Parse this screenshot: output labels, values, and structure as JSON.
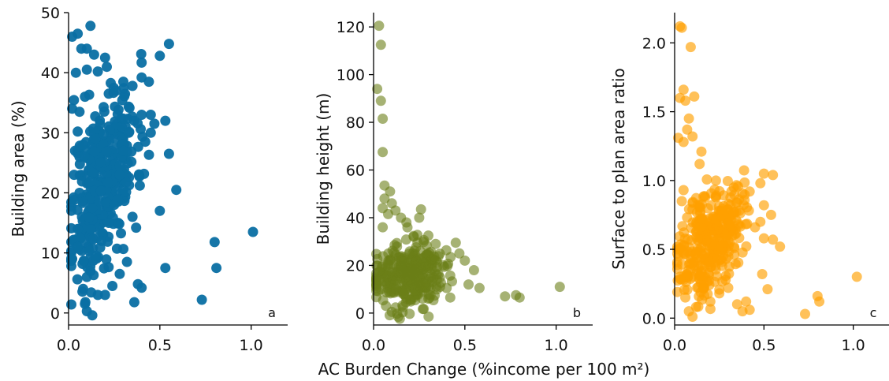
{
  "shared_xlabel": "AC Burden Change (%income per 100 m²)",
  "chart_data": [
    {
      "type": "scatter",
      "panel_label": "a",
      "xlabel": "",
      "ylabel": "Building area (%)",
      "xlim": [
        0.0,
        1.2
      ],
      "ylim": [
        -2,
        50
      ],
      "xticks": [
        "0.0",
        "0.5",
        "1.0"
      ],
      "xtick_values": [
        0.0,
        0.5,
        1.0
      ],
      "yticks": [
        "0",
        "10",
        "20",
        "30",
        "40",
        "50"
      ],
      "ytick_values": [
        0,
        10,
        20,
        30,
        40,
        50
      ],
      "color": "#0a6fa3",
      "opacity": 0.95,
      "points": [
        [
          0.02,
          46
        ],
        [
          0.05,
          46.5
        ],
        [
          0.12,
          47.8
        ],
        [
          0.07,
          44
        ],
        [
          0.1,
          44
        ],
        [
          0.14,
          43
        ],
        [
          0.2,
          42.5
        ],
        [
          0.5,
          42.8
        ],
        [
          0.55,
          44.8
        ],
        [
          0.04,
          40
        ],
        [
          0.1,
          40.5
        ],
        [
          0.16,
          40.2
        ],
        [
          0.3,
          38.5
        ],
        [
          0.35,
          37.8
        ],
        [
          0.4,
          39.2
        ],
        [
          0.44,
          38.5
        ],
        [
          0.02,
          34
        ],
        [
          0.06,
          33.5
        ],
        [
          0.09,
          36
        ],
        [
          0.22,
          36.5
        ],
        [
          0.26,
          37
        ],
        [
          0.05,
          30.2
        ],
        [
          0.08,
          28
        ],
        [
          0.53,
          32
        ],
        [
          0.55,
          26.5
        ],
        [
          0.59,
          20.5
        ],
        [
          0.5,
          17
        ],
        [
          0.53,
          7.5
        ],
        [
          0.03,
          23
        ],
        [
          0.06,
          20
        ],
        [
          0.05,
          14
        ],
        [
          0.03,
          12
        ],
        [
          0.02,
          9
        ],
        [
          0.05,
          11
        ],
        [
          0.35,
          16
        ],
        [
          0.37,
          14.2
        ],
        [
          0.39,
          21.2
        ],
        [
          0.38,
          4.8
        ],
        [
          0.4,
          4.2
        ],
        [
          0.36,
          1.8
        ],
        [
          0.73,
          2.2
        ],
        [
          0.8,
          11.8
        ],
        [
          0.81,
          7.5
        ],
        [
          1.01,
          13.5
        ],
        [
          0.1,
          0.3
        ],
        [
          0.09,
          1.5
        ],
        [
          0.08,
          4
        ],
        [
          0.1,
          6
        ],
        [
          0.12,
          7
        ],
        [
          0.16,
          3
        ],
        [
          0.2,
          3
        ],
        [
          0.24,
          4.5
        ],
        [
          0.28,
          6.5
        ],
        [
          0.32,
          8.5
        ],
        [
          0.15,
          9.5
        ],
        [
          0.18,
          12
        ],
        [
          0.22,
          15
        ],
        [
          0.25,
          18
        ],
        [
          0.28,
          23
        ],
        [
          0.3,
          27
        ],
        [
          0.33,
          30
        ],
        [
          0.36,
          32
        ],
        [
          0.4,
          33
        ],
        [
          0.45,
          30
        ],
        [
          0.42,
          28.5
        ],
        [
          0.45,
          33
        ],
        [
          0.47,
          31.5
        ]
      ],
      "cluster": {
        "count": 360,
        "x_mean": 0.19,
        "x_sd": 0.09,
        "y_mean": 22,
        "y_sd": 7.5,
        "corr": 0.45,
        "seed": 11
      }
    },
    {
      "type": "scatter",
      "panel_label": "b",
      "xlabel": "",
      "ylabel": "Building height (m)",
      "xlim": [
        0.0,
        1.2
      ],
      "ylim": [
        -5,
        126
      ],
      "xticks": [
        "0.0",
        "0.5",
        "1.0"
      ],
      "xtick_values": [
        0.0,
        0.5,
        1.0
      ],
      "yticks": [
        "0",
        "20",
        "40",
        "60",
        "80",
        "100",
        "120"
      ],
      "ytick_values": [
        0,
        20,
        40,
        60,
        80,
        100,
        120
      ],
      "color": "#6b7f17",
      "opacity": 0.6,
      "points": [
        [
          0.03,
          120.5
        ],
        [
          0.04,
          112.5
        ],
        [
          0.02,
          94
        ],
        [
          0.04,
          89
        ],
        [
          0.05,
          81.5
        ],
        [
          0.05,
          67.5
        ],
        [
          0.06,
          53.5
        ],
        [
          0.09,
          51
        ],
        [
          0.06,
          48
        ],
        [
          0.05,
          44
        ],
        [
          0.08,
          41.5
        ],
        [
          0.05,
          36
        ],
        [
          0.1,
          46
        ],
        [
          0.12,
          43
        ],
        [
          0.15,
          40
        ],
        [
          0.18,
          38
        ],
        [
          0.26,
          43.5
        ],
        [
          0.25,
          40
        ],
        [
          0.22,
          32
        ],
        [
          0.3,
          32.5
        ],
        [
          0.34,
          29
        ],
        [
          0.45,
          29.5
        ],
        [
          0.47,
          25
        ],
        [
          0.5,
          22
        ],
        [
          0.55,
          18
        ],
        [
          0.52,
          12
        ],
        [
          0.58,
          10.5
        ],
        [
          0.72,
          7
        ],
        [
          0.78,
          7.5
        ],
        [
          0.8,
          6.5
        ],
        [
          1.02,
          11
        ],
        [
          0.1,
          0.5
        ],
        [
          0.4,
          10.5
        ],
        [
          0.42,
          6.5
        ],
        [
          0.3,
          6
        ],
        [
          0.2,
          5.5
        ],
        [
          0.04,
          10
        ],
        [
          0.03,
          14
        ],
        [
          0.38,
          20
        ]
      ],
      "cluster": {
        "count": 320,
        "x_mean": 0.19,
        "x_sd": 0.095,
        "y_mean": 16,
        "y_sd": 6.5,
        "corr": 0.05,
        "seed": 23
      }
    },
    {
      "type": "scatter",
      "panel_label": "c",
      "xlabel": "",
      "ylabel": "Surface to plan area ratio",
      "xlim": [
        0.0,
        1.2
      ],
      "ylim": [
        -0.05,
        2.22
      ],
      "xticks": [
        "0.0",
        "0.5",
        "1.0"
      ],
      "xtick_values": [
        0.0,
        0.5,
        1.0
      ],
      "yticks": [
        "0.0",
        "0.5",
        "1.0",
        "1.5",
        "2.0"
      ],
      "ytick_values": [
        0.0,
        0.5,
        1.0,
        1.5,
        2.0
      ],
      "color": "#ffa000",
      "opacity": 0.65,
      "points": [
        [
          0.03,
          2.12
        ],
        [
          0.04,
          2.11
        ],
        [
          0.09,
          1.97
        ],
        [
          0.05,
          1.66
        ],
        [
          0.03,
          1.6
        ],
        [
          0.06,
          1.58
        ],
        [
          0.11,
          1.61
        ],
        [
          0.08,
          1.45
        ],
        [
          0.07,
          1.37
        ],
        [
          0.1,
          1.32
        ],
        [
          0.02,
          1.31
        ],
        [
          0.05,
          1.28
        ],
        [
          0.15,
          1.21
        ],
        [
          0.14,
          1.12
        ],
        [
          0.05,
          0.93
        ],
        [
          0.04,
          0.85
        ],
        [
          0.5,
          1.05
        ],
        [
          0.55,
          1.04
        ],
        [
          0.48,
          0.98
        ],
        [
          0.42,
          0.92
        ],
        [
          0.5,
          0.82
        ],
        [
          0.54,
          0.75
        ],
        [
          0.48,
          0.7
        ],
        [
          0.45,
          0.66
        ],
        [
          0.5,
          0.58
        ],
        [
          0.55,
          0.57
        ],
        [
          0.59,
          0.52
        ],
        [
          0.49,
          0.32
        ],
        [
          0.52,
          0.21
        ],
        [
          0.4,
          0.12
        ],
        [
          0.42,
          0.06
        ],
        [
          0.38,
          0.05
        ],
        [
          0.35,
          0.1
        ],
        [
          0.73,
          0.03
        ],
        [
          0.8,
          0.16
        ],
        [
          0.81,
          0.12
        ],
        [
          1.02,
          0.3
        ],
        [
          0.1,
          0.01
        ],
        [
          0.08,
          0.05
        ],
        [
          0.12,
          0.08
        ],
        [
          0.06,
          0.15
        ],
        [
          0.2,
          0.12
        ],
        [
          0.25,
          0.18
        ],
        [
          0.3,
          0.22
        ],
        [
          0.03,
          0.3
        ],
        [
          0.02,
          0.45
        ]
      ],
      "cluster": {
        "count": 340,
        "x_mean": 0.2,
        "x_sd": 0.09,
        "y_mean": 0.58,
        "y_sd": 0.2,
        "corr": 0.4,
        "seed": 37
      }
    }
  ]
}
